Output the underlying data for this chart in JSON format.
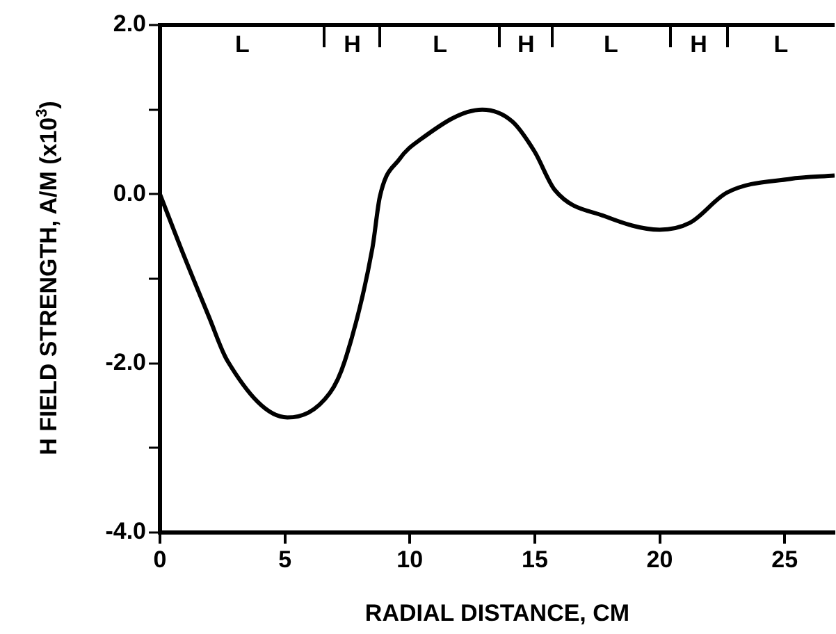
{
  "chart_data": {
    "type": "line",
    "xlabel": "RADIAL DISTANCE, CM",
    "ylabel": "H FIELD STRENGTH, A/M (x10$^{3}$)",
    "x": [
      0,
      0.84,
      1.96,
      2.7,
      5.1,
      6.8,
      7.4,
      8.5,
      8.8,
      9.6,
      10.3,
      12.9,
      14.1,
      15.0,
      15.8,
      17.8,
      20.0,
      21.2,
      22.7,
      25.2,
      27
    ],
    "series": [
      {
        "color": "#000000",
        "values": [
          0,
          -0.64,
          -1.45,
          -1.97,
          -2.64,
          -2.35,
          -1.97,
          -0.64,
          -0.03,
          0.42,
          0.62,
          1.0,
          0.86,
          0.5,
          0.05,
          -0.26,
          -0.42,
          -0.34,
          0.02,
          0.18,
          0.22
        ]
      }
    ],
    "xlim": [
      0,
      27
    ],
    "xticks": [
      0,
      5,
      10,
      15,
      20,
      25
    ],
    "ylim": [
      -4,
      2
    ],
    "yticks": [
      {
        "value": -4,
        "label": "-4.0"
      },
      {
        "value": -3,
        "label": null
      },
      {
        "value": -2,
        "label": "-2.0"
      },
      {
        "value": -1,
        "label": null
      },
      {
        "value": 0,
        "label": "0.0"
      },
      {
        "value": 1,
        "label": null
      },
      {
        "value": 2,
        "label": "2.0"
      }
    ],
    "annotations": [
      "L",
      "H",
      "L",
      "H",
      "L",
      "H",
      "L"
    ],
    "grid": false,
    "marker": "none",
    "line_style": "solid",
    "legend": false
  }
}
